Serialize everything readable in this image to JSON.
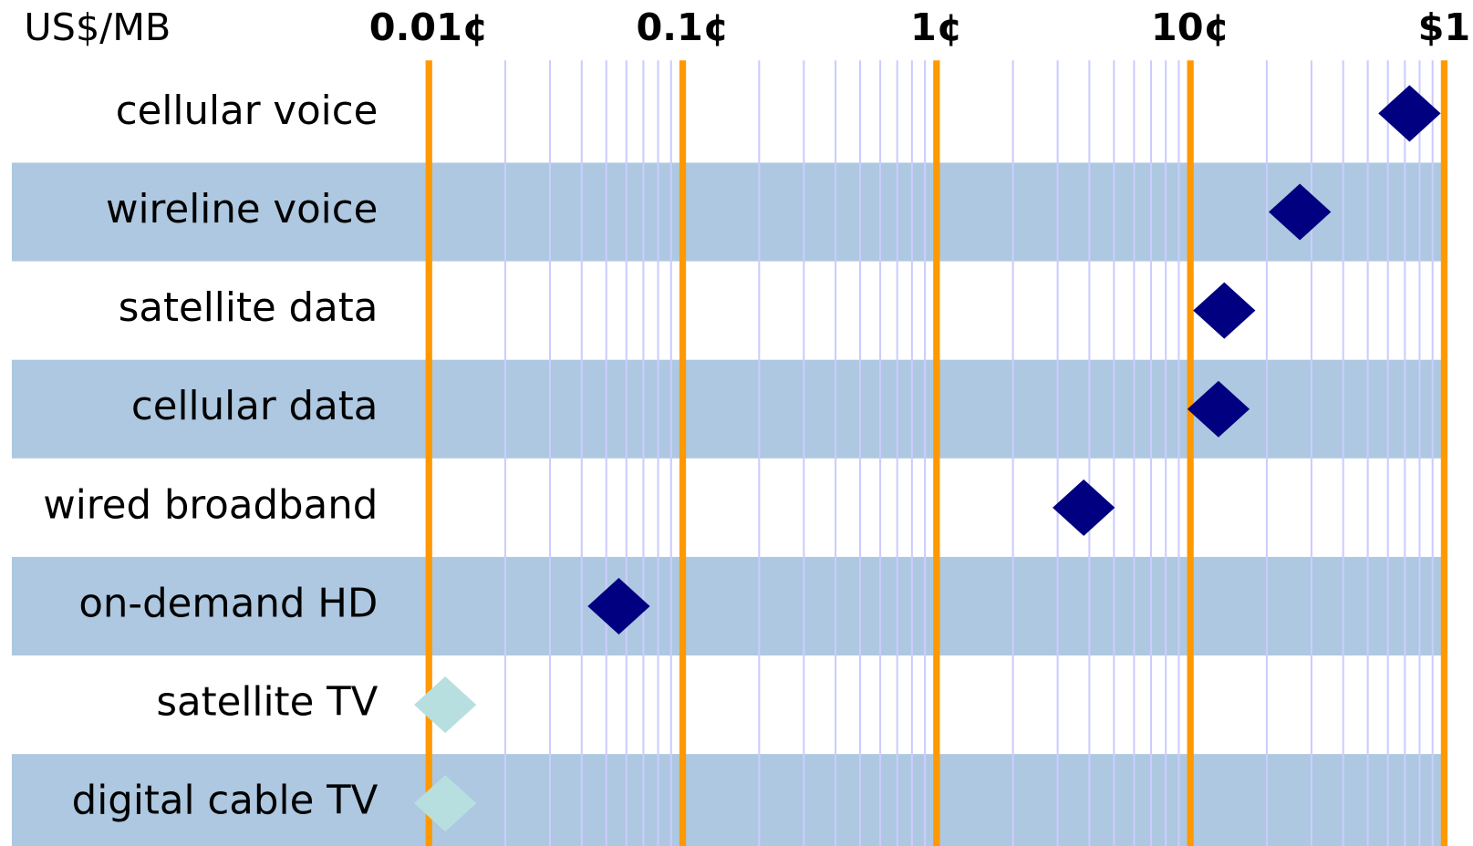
{
  "chart_data": {
    "type": "scatter",
    "x_label": "US$/MB",
    "categories": [
      "cellular voice",
      "wireline voice",
      "satellite data",
      "cellular data",
      "wired broadband",
      "on-demand HD",
      "satellite TV",
      "digital cable TV"
    ],
    "values": [
      0.73,
      0.27,
      0.136,
      0.129,
      0.038,
      0.00056,
      0.000116,
      0.000116
    ],
    "colors": [
      "#000080",
      "#000080",
      "#000080",
      "#000080",
      "#000080",
      "#000080",
      "#b8dfe0",
      "#b8dfe0"
    ],
    "xlim": [
      0.0001,
      1
    ],
    "xticks": [
      {
        "value": 0.0001,
        "label": "0.01¢"
      },
      {
        "value": 0.001,
        "label": "0.1¢"
      },
      {
        "value": 0.01,
        "label": "1¢"
      },
      {
        "value": 0.1,
        "label": "10¢"
      },
      {
        "value": 1,
        "label": "$1"
      }
    ],
    "log_x": true,
    "grid": true,
    "minor_grid": true,
    "grid_color": "#ff9900",
    "minor_grid_color": "#ccccff",
    "band_color": "#adc8e0"
  }
}
